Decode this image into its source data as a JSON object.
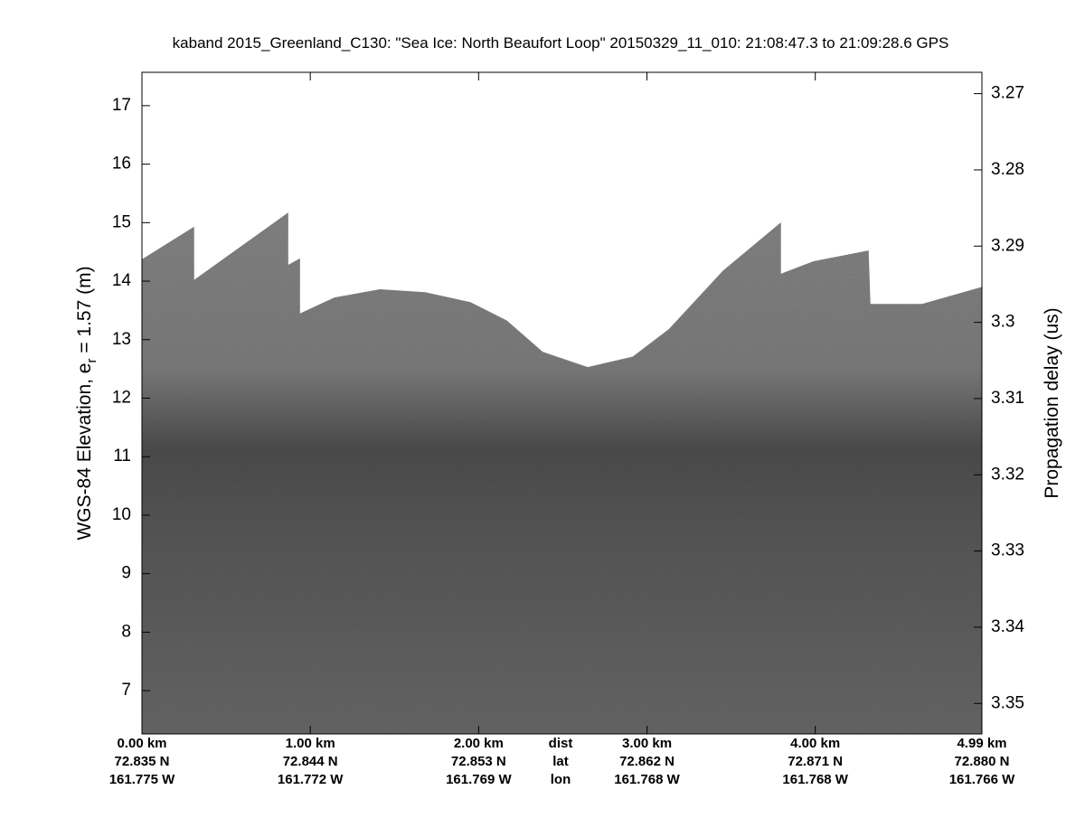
{
  "chart_data": {
    "type": "echogram",
    "title": "kaband 2015_Greenland_C130: \"Sea Ice: North Beaufort Loop\"  20150329_11_010: 21:08:47.3 to 21:09:28.6 GPS",
    "ylabel_parts": [
      "WGS-84 Elevation, e",
      "r",
      " = 1.57 (m)"
    ],
    "y2label": "Propagation delay (us)",
    "xlim": [
      0,
      4.99
    ],
    "ylim": [
      6.26,
      17.57
    ],
    "y2lim": [
      3.354,
      3.2672
    ],
    "yticks": [
      7,
      8,
      9,
      10,
      11,
      12,
      13,
      14,
      15,
      16,
      17
    ],
    "y2ticks": [
      3.27,
      3.28,
      3.29,
      3.3,
      3.31,
      3.32,
      3.33,
      3.34,
      3.35
    ],
    "xticks": [
      {
        "value": 0,
        "label": "0.00 km"
      },
      {
        "value": 1,
        "label": "1.00 km"
      },
      {
        "value": 2,
        "label": "2.00 km"
      },
      {
        "value": 3,
        "label": "3.00 km"
      },
      {
        "value": 4,
        "label": "4.00 km"
      },
      {
        "value": 4.99,
        "label": "4.99 km"
      }
    ],
    "lat_labels": [
      "72.835 N",
      "72.844 N",
      "72.853 N",
      "72.862 N",
      "72.871 N",
      "72.880 N"
    ],
    "lon_labels": [
      "161.775 W",
      "161.772 W",
      "161.769 W",
      "161.768 W",
      "161.768 W",
      "161.766 W"
    ],
    "row_names": [
      "dist",
      "lat",
      "lon"
    ],
    "x": [
      0,
      0.306,
      0.306,
      0.865,
      0.865,
      0.935,
      0.935,
      1.144,
      1.413,
      1.681,
      1.95,
      2.165,
      2.38,
      2.648,
      2.917,
      3.132,
      3.454,
      3.792,
      3.792,
      3.991,
      4.313,
      4.324,
      4.635,
      4.99
    ],
    "series": [
      {
        "name": "surface",
        "color": "#7a7a7a",
        "values": [
          14.36,
          14.91,
          14.0,
          15.15,
          14.26,
          14.37,
          13.43,
          13.71,
          13.85,
          13.8,
          13.63,
          13.32,
          12.78,
          12.52,
          12.7,
          13.17,
          14.17,
          14.98,
          14.11,
          14.33,
          14.51,
          13.6,
          13.6,
          13.89
        ]
      }
    ]
  }
}
